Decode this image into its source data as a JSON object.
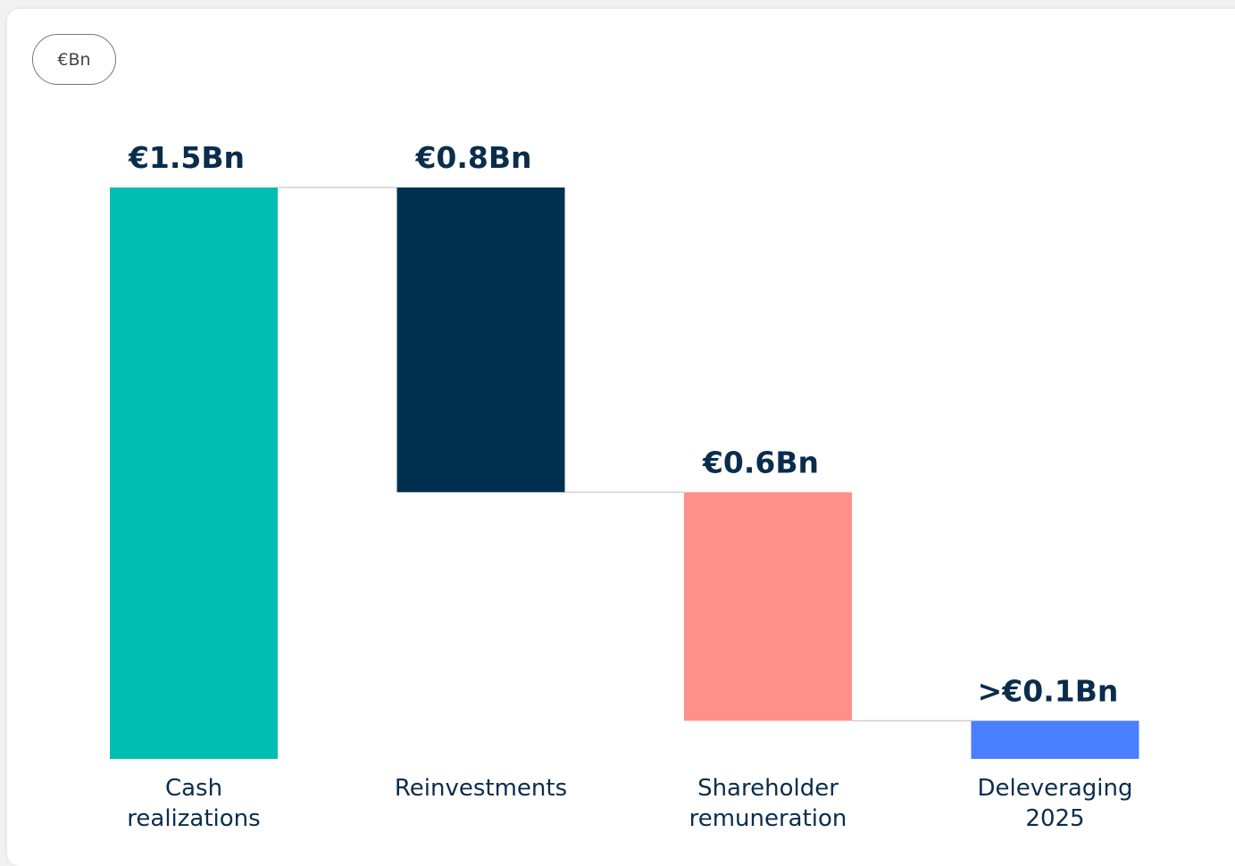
{
  "chart_data": {
    "type": "waterfall",
    "unit_label": "€Bn",
    "categories": [
      "Cash\nrealizations",
      "Reinvestments",
      "Shareholder\nremuneration",
      "Deleveraging\n2025"
    ],
    "values": [
      1.5,
      0.8,
      0.6,
      0.1
    ],
    "value_labels": [
      "€1.5Bn",
      "€0.8Bn",
      "€0.6Bn",
      ">€0.1Bn"
    ],
    "colors": [
      "#00bfb2",
      "#00304f",
      "#ff8f8a",
      "#4a80ff"
    ]
  }
}
